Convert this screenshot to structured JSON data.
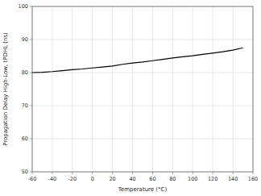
{
  "chart_data": {
    "type": "line",
    "xlabel": "Temperature (°C)",
    "ylabel": "Propagation Delay High-Low, tPDHL (ns)",
    "x": [
      -60,
      -50,
      -40,
      -30,
      -20,
      -10,
      0,
      10,
      20,
      30,
      40,
      50,
      60,
      70,
      80,
      90,
      100,
      110,
      120,
      130,
      140,
      150
    ],
    "values": [
      80.0,
      80.1,
      80.3,
      80.6,
      80.9,
      81.1,
      81.4,
      81.7,
      82.0,
      82.5,
      82.9,
      83.2,
      83.6,
      84.0,
      84.4,
      84.8,
      85.1,
      85.5,
      85.9,
      86.3,
      86.8,
      87.5
    ],
    "color": "#000000",
    "xlim": [
      -60,
      160
    ],
    "ylim": [
      50,
      100
    ],
    "xticks": [
      -60,
      -40,
      -20,
      0,
      20,
      40,
      60,
      80,
      100,
      120,
      140,
      160
    ],
    "yticks": [
      50,
      60,
      70,
      80,
      90,
      100
    ],
    "grid": true
  }
}
